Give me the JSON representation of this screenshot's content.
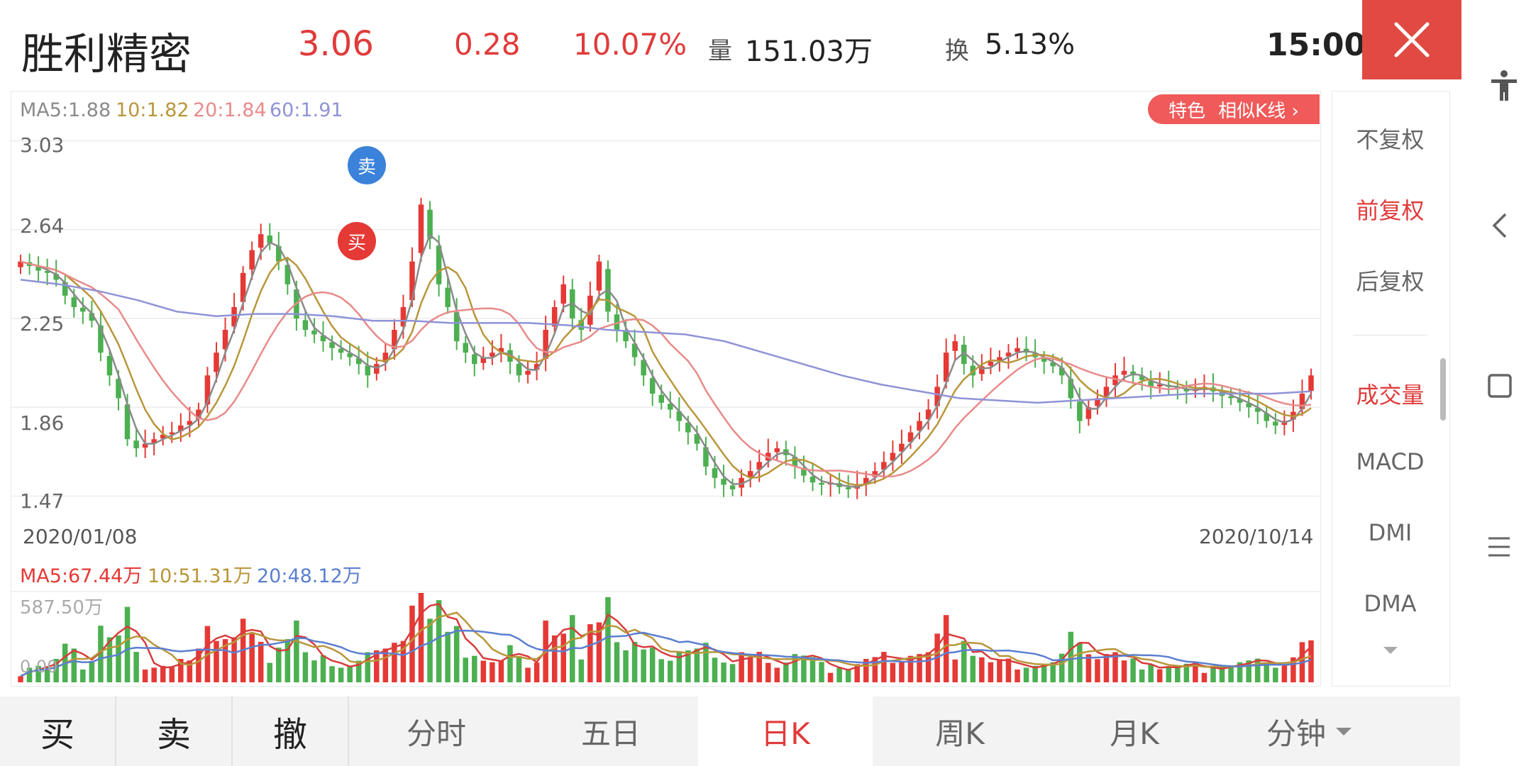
{
  "header": {
    "stock_name": "胜利精密",
    "price": "3.06",
    "change": "0.28",
    "change_pct": "10.07%",
    "volume_label": "量",
    "volume_value": "151.03万",
    "turnover_label": "换",
    "turnover_value": "5.13%",
    "time": "15:00"
  },
  "colors": {
    "up": "#e53935",
    "down": "#4caf50",
    "ma5": "#8a8a8a",
    "ma10": "#b8963a",
    "ma20": "#e88a8a",
    "ma60": "#8f93d6",
    "accent": "#e04a43"
  },
  "ma_legend": {
    "ma5": "MA5:1.88",
    "ma10": "10:1.82",
    "ma20": "20:1.84",
    "ma60": "60:1.91"
  },
  "feature": {
    "label": "特色",
    "link": "相似K线 ›"
  },
  "vol_legend": {
    "ma5": "MA5:67.44万",
    "ma10": "10:51.31万",
    "ma20": "20:48.12万"
  },
  "vol_max_label": "587.50万",
  "vol_zero_label": "0.00",
  "markers": {
    "sell": "卖",
    "buy": "买"
  },
  "side_menu": [
    {
      "label": "不复权",
      "active": false
    },
    {
      "label": "前复权",
      "active": true
    },
    {
      "label": "后复权",
      "active": false
    },
    {
      "label": "成交量",
      "active": true
    },
    {
      "label": "MACD",
      "active": false
    },
    {
      "label": "DMI",
      "active": false
    },
    {
      "label": "DMA",
      "active": false
    }
  ],
  "bottom_tabs": {
    "buy": "买",
    "sell": "卖",
    "cancel": "撤",
    "intraday": "分时",
    "five_day": "五日",
    "daily": "日K",
    "weekly": "周K",
    "monthly": "月K",
    "minute": "分钟"
  },
  "chart_data": {
    "type": "candlestick",
    "title": "",
    "date_range": [
      "2020/01/08",
      "2020/10/14"
    ],
    "price_ticks": [
      3.03,
      2.64,
      2.25,
      1.86,
      1.47
    ],
    "ylim": [
      1.4,
      3.1
    ],
    "close_series": [
      2.5,
      2.48,
      2.46,
      2.45,
      2.42,
      2.35,
      2.3,
      2.28,
      2.24,
      2.1,
      2.0,
      1.9,
      1.72,
      1.68,
      1.7,
      1.72,
      1.74,
      1.75,
      1.78,
      1.8,
      1.85,
      2.0,
      2.1,
      2.2,
      2.3,
      2.45,
      2.55,
      2.62,
      2.58,
      2.5,
      2.4,
      2.25,
      2.2,
      2.18,
      2.15,
      2.12,
      2.1,
      2.08,
      2.05,
      2.0,
      2.05,
      2.1,
      2.2,
      2.3,
      2.5,
      2.75,
      2.6,
      2.4,
      2.3,
      2.15,
      2.1,
      2.05,
      2.08,
      2.1,
      2.12,
      2.06,
      2.0,
      2.02,
      2.05,
      2.2,
      2.3,
      2.4,
      2.25,
      2.2,
      2.35,
      2.5,
      2.28,
      2.2,
      2.15,
      2.08,
      2.0,
      1.92,
      1.88,
      1.85,
      1.8,
      1.75,
      1.7,
      1.6,
      1.55,
      1.52,
      1.5,
      1.55,
      1.58,
      1.62,
      1.66,
      1.68,
      1.65,
      1.6,
      1.56,
      1.53,
      1.52,
      1.53,
      1.51,
      1.5,
      1.52,
      1.55,
      1.58,
      1.62,
      1.66,
      1.7,
      1.75,
      1.8,
      1.85,
      1.95,
      2.1,
      2.15,
      2.05,
      2.0,
      2.04,
      2.06,
      2.08,
      2.1,
      2.12,
      2.1,
      2.08,
      2.06,
      2.04,
      2.0,
      1.9,
      1.8,
      1.86,
      1.9,
      1.95,
      2.0,
      2.02,
      2.0,
      1.98,
      1.95,
      1.96,
      1.95,
      1.94,
      1.93,
      1.94,
      1.95,
      1.93,
      1.91,
      1.9,
      1.88,
      1.86,
      1.84,
      1.8,
      1.78,
      1.8,
      1.84,
      1.92,
      2.0
    ],
    "ma60_series": [
      2.42,
      2.4,
      2.37,
      2.33,
      2.28,
      2.26,
      2.27,
      2.27,
      2.26,
      2.24,
      2.24,
      2.23,
      2.23,
      2.23,
      2.22,
      2.2,
      2.19,
      2.18,
      2.15,
      2.1,
      2.05,
      2.0,
      1.96,
      1.93,
      1.9,
      1.89,
      1.88,
      1.89,
      1.9,
      1.91,
      1.92,
      1.92,
      1.92,
      1.93
    ],
    "volume_max": 587.5,
    "volume_ma": {
      "ma5": 67.44,
      "ma10": 51.31,
      "ma20": 48.12
    },
    "volume_unit": "万"
  }
}
